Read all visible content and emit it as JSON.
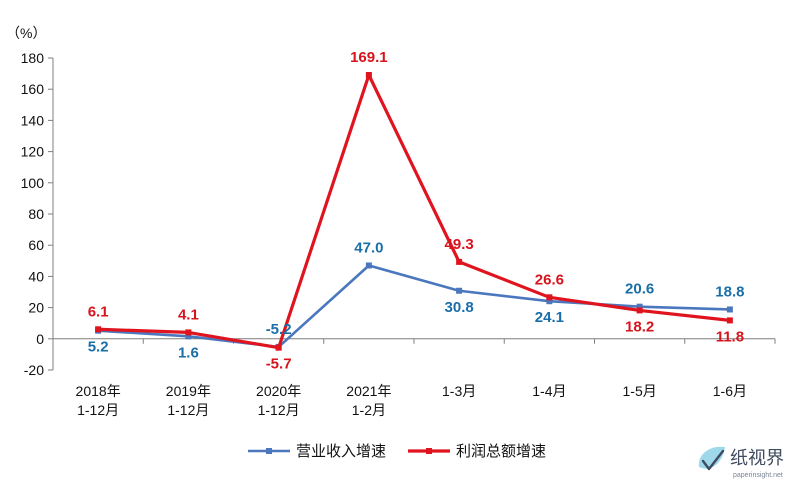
{
  "chart_data": {
    "type": "line",
    "unit_label": "（%）",
    "categories": [
      [
        "2018年",
        "1-12月"
      ],
      [
        "2019年",
        "1-12月"
      ],
      [
        "2020年",
        "1-12月"
      ],
      [
        "2021年",
        "1-2月"
      ],
      [
        "1-3月"
      ],
      [
        "1-4月"
      ],
      [
        "1-5月"
      ],
      [
        "1-6月"
      ]
    ],
    "ylim": [
      -20,
      180
    ],
    "yticks": [
      -20,
      0,
      20,
      40,
      60,
      80,
      100,
      120,
      140,
      160,
      180
    ],
    "grid": false,
    "legend_position": "bottom",
    "series": [
      {
        "name": "营业收入增速",
        "color": "#4a77bd",
        "label_color": "#1a6fa8",
        "values": [
          5.2,
          1.6,
          -5.2,
          47.0,
          30.8,
          24.1,
          20.6,
          18.8
        ],
        "labels": [
          "5.2",
          "1.6",
          "-5.2",
          "47.0",
          "30.8",
          "24.1",
          "20.6",
          "18.8"
        ],
        "label_side": [
          "below",
          "below",
          "above",
          "above",
          "below",
          "below",
          "above",
          "above"
        ]
      },
      {
        "name": "利润总额增速",
        "color": "#e0141e",
        "label_color": "#d7141d",
        "values": [
          6.1,
          4.1,
          -5.7,
          169.1,
          49.3,
          26.6,
          18.2,
          11.8
        ],
        "labels": [
          "6.1",
          "4.1",
          "-5.7",
          "169.1",
          "49.3",
          "26.6",
          "18.2",
          "11.8"
        ],
        "label_side": [
          "above",
          "above",
          "below",
          "above",
          "above",
          "above",
          "below",
          "below"
        ]
      }
    ]
  },
  "watermark": {
    "text": "纸视界",
    "subtext": "paperinsight.net",
    "icon": "leaf-check-icon"
  }
}
